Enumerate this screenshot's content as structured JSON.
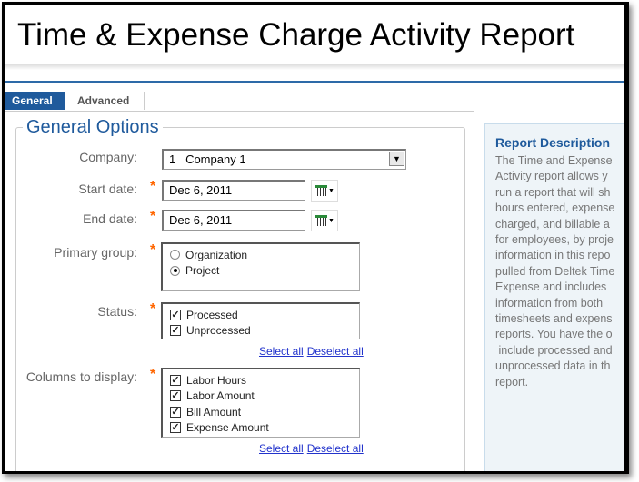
{
  "title": "Time & Expense Charge Activity Report",
  "tabs": [
    {
      "label": "General",
      "active": true
    },
    {
      "label": "Advanced",
      "active": false
    }
  ],
  "form": {
    "legend": "General Options",
    "company": {
      "label": "Company:",
      "value": "1   Company 1"
    },
    "start_date": {
      "label": "Start date:",
      "value": "Dec 6, 2011"
    },
    "end_date": {
      "label": "End date:",
      "value": "Dec 6, 2011"
    },
    "primary_group": {
      "label": "Primary group:",
      "options": [
        {
          "label": "Organization",
          "selected": false
        },
        {
          "label": "Project",
          "selected": true
        }
      ]
    },
    "status": {
      "label": "Status:",
      "options": [
        {
          "label": "Processed",
          "checked": true
        },
        {
          "label": "Unprocessed",
          "checked": true
        }
      ]
    },
    "columns": {
      "label": "Columns to display:",
      "options": [
        {
          "label": "Labor Hours",
          "checked": true
        },
        {
          "label": "Labor Amount",
          "checked": true
        },
        {
          "label": "Bill Amount",
          "checked": true
        },
        {
          "label": "Expense Amount",
          "checked": true
        }
      ]
    },
    "select_all": "Select all",
    "deselect_all": "Deselect all",
    "required_mark": "*"
  },
  "description": {
    "title": "Report Description",
    "lines": [
      "The Time and Expense",
      "Activity report allows y",
      "run a report that will sh",
      "hours entered, expense",
      "charged, and billable a",
      "for employees, by proje",
      "information in this repo",
      "pulled from Deltek Time",
      "Expense and includes",
      "information from both",
      "timesheets and expens",
      "reports. You have the o",
      " include processed and",
      "unprocessed data in th",
      "report."
    ]
  },
  "colors": {
    "accent": "#1f5a9c",
    "required": "#ff6600",
    "link": "#2233cc",
    "panel_bg": "#eef4f8"
  }
}
